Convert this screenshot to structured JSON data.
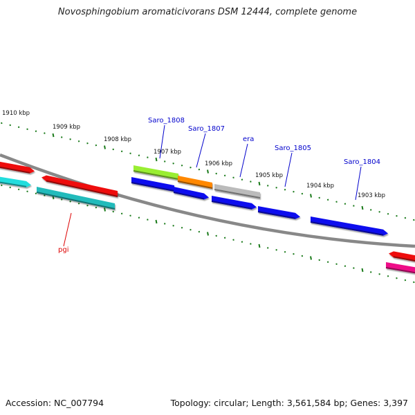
{
  "title": "Novosphingobium aromaticivorans DSM 12444, complete genome",
  "footer": {
    "accession": "Accession: NC_007794",
    "topology": "Topology: circular; Length: 3,561,584 bp; Genes: 3,397"
  },
  "kbp_labels": [
    "1910 kbp",
    "1909 kbp",
    "1908 kbp",
    "1907 kbp",
    "1906 kbp",
    "1905 kbp",
    "1904 kbp",
    "1903 kbp"
  ],
  "gene_labels": [
    {
      "name": "Saro_1808",
      "color": "#0000cc"
    },
    {
      "name": "Saro_1807",
      "color": "#0000cc"
    },
    {
      "name": "era",
      "color": "#0000cc"
    },
    {
      "name": "Saro_1805",
      "color": "#0000cc"
    },
    {
      "name": "Saro_1804",
      "color": "#0000cc"
    },
    {
      "name": "pgi",
      "color": "#dd0000"
    }
  ],
  "colors": {
    "backbone": "#888888",
    "ticks": "#1a7a1a",
    "red": "#ee1111",
    "cyan": "#22dddd",
    "teal": "#22bbbb",
    "lime": "#99ee33",
    "orange": "#ff8800",
    "gray": "#bbbbbb",
    "blue": "#1111ee",
    "magenta": "#ee1188"
  }
}
